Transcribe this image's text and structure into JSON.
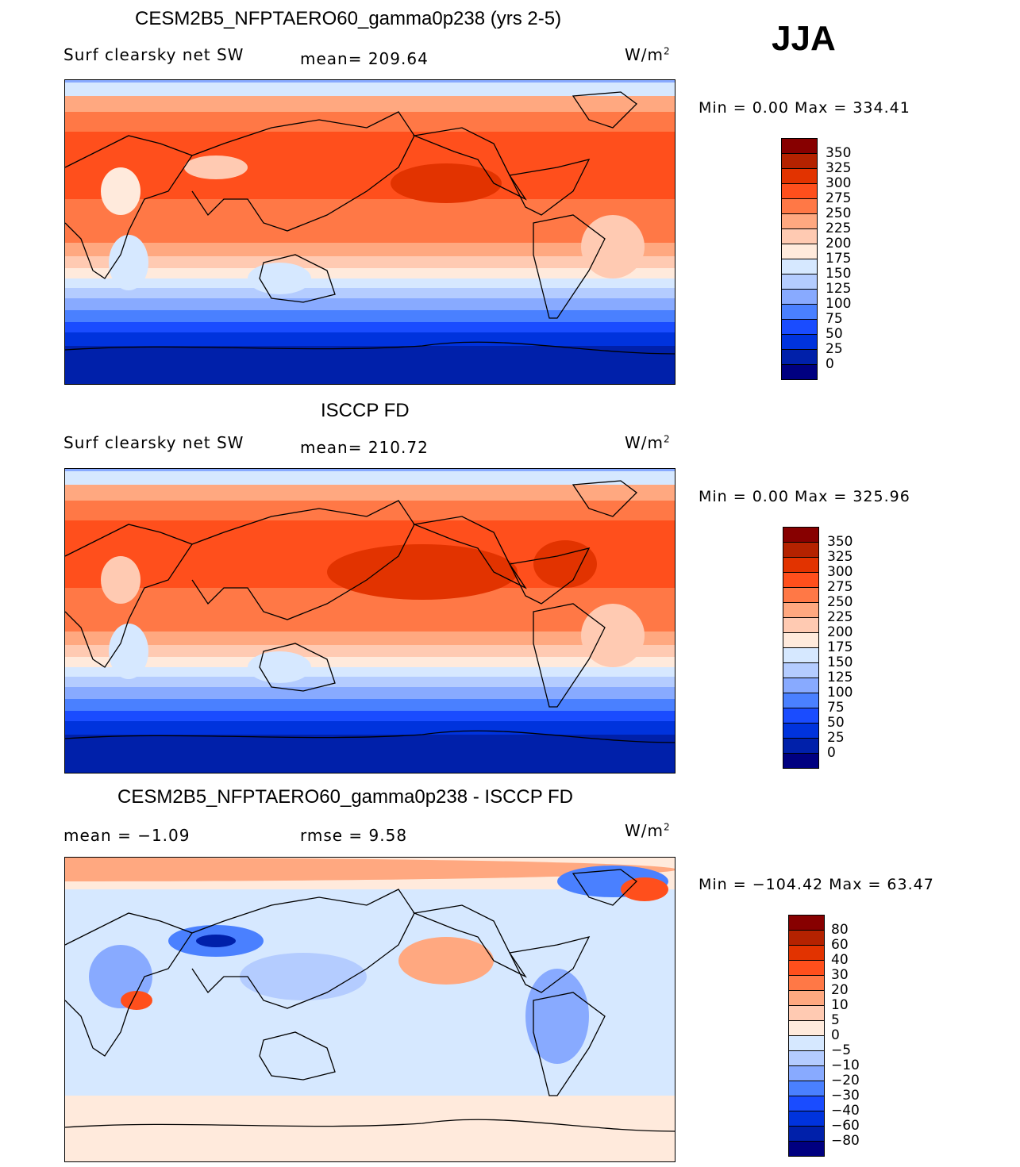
{
  "season": "JJA",
  "units_base": "W/m",
  "units_exp": "2",
  "panels": [
    {
      "title": "CESM2B5_NFPTAERO60_gamma0p238 (yrs 2-5)",
      "variable": "Surf  clearsky  net  SW",
      "stat": "mean=  209.64",
      "minmax": "Min  =      0.00  Max  =  334.41"
    },
    {
      "title": "ISCCP FD",
      "variable": "Surf  clearsky  net  SW",
      "stat": "mean=  210.72",
      "minmax": "Min  =      0.00  Max  =  325.96"
    },
    {
      "title": "CESM2B5_NFPTAERO60_gamma0p238 - ISCCP FD",
      "variable": "mean  =    −1.09",
      "stat": "rmse  =     9.58",
      "minmax": "Min  = −104.42  Max  =    63.47"
    }
  ],
  "colors": [
    "#870000",
    "#b42200",
    "#e23300",
    "#ff4f1c",
    "#ff7846",
    "#ffa880",
    "#ffcab2",
    "#ffeadc",
    "#d6e8ff",
    "#b4ccff",
    "#88aaff",
    "#4a80ff",
    "#1a4cff",
    "#0033dd",
    "#0020aa",
    "#000080"
  ],
  "colorbar_abs": [
    "350",
    "325",
    "300",
    "275",
    "250",
    "225",
    "200",
    "175",
    "150",
    "125",
    "100",
    "75",
    "50",
    "25",
    "0"
  ],
  "colorbar_diff": [
    "80",
    "60",
    "40",
    "30",
    "20",
    "10",
    "5",
    "0",
    "−5",
    "−10",
    "−20",
    "−30",
    "−40",
    "−60",
    "−80"
  ]
}
